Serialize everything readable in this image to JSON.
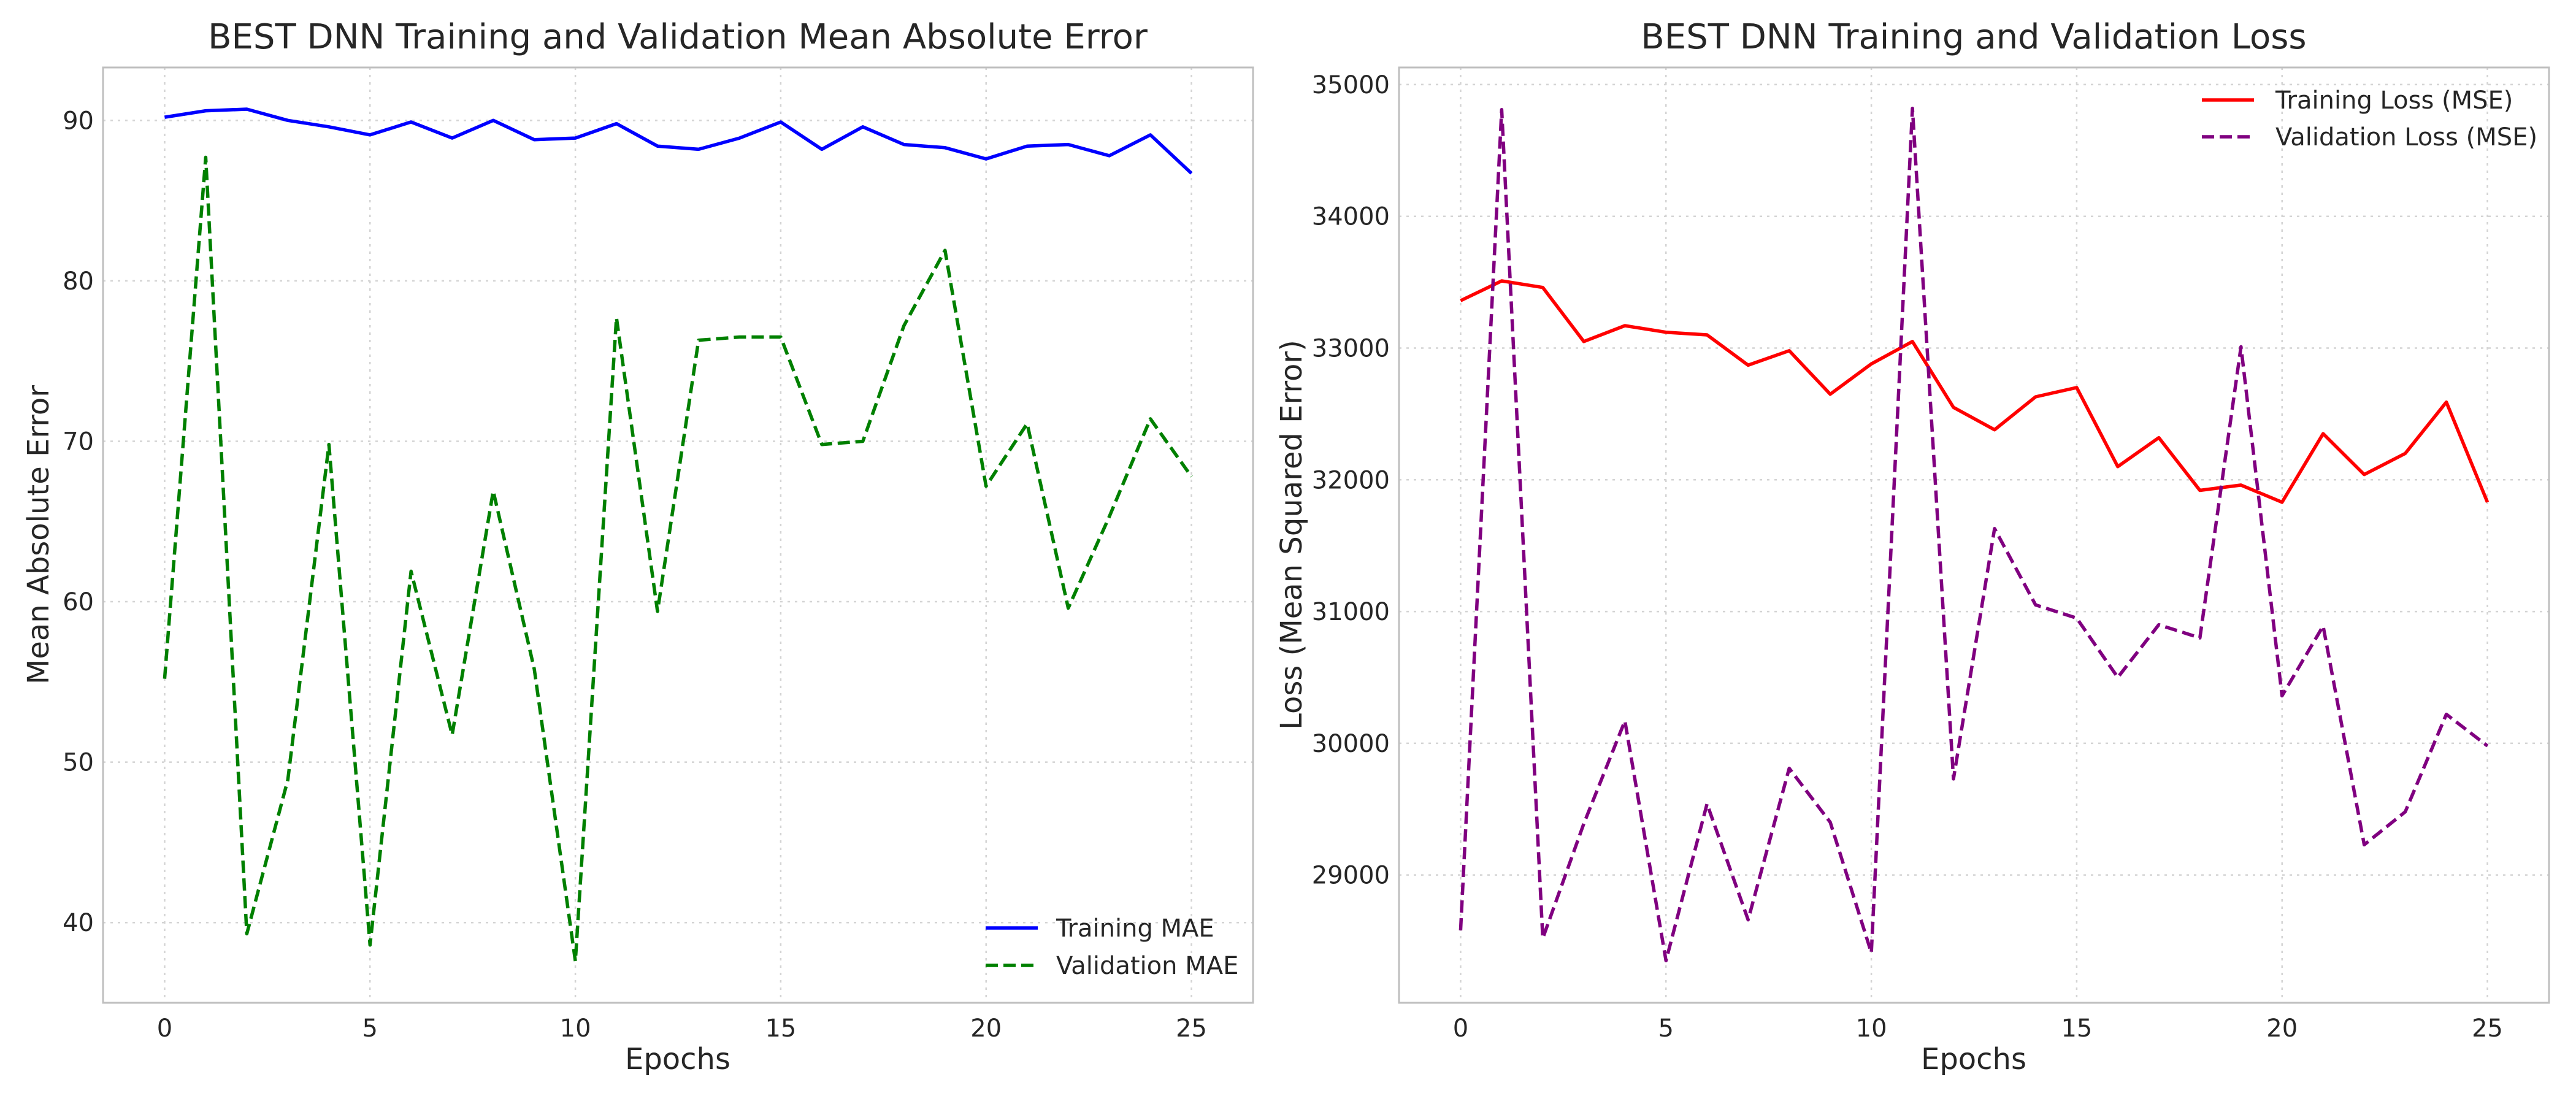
{
  "chart_data": [
    {
      "type": "line",
      "title": "BEST DNN Training and Validation Mean Absolute Error",
      "xlabel": "Epochs",
      "ylabel": "Mean Absolute Error",
      "xlim": [
        -1.5,
        26.5
      ],
      "ylim": [
        35,
        93.3
      ],
      "xticks": [
        0,
        5,
        10,
        15,
        20,
        25
      ],
      "yticks": [
        40,
        50,
        60,
        70,
        80,
        90
      ],
      "grid": true,
      "legend_position": "lower right",
      "x": [
        0,
        1,
        2,
        3,
        4,
        5,
        6,
        7,
        8,
        9,
        10,
        11,
        12,
        13,
        14,
        15,
        16,
        17,
        18,
        19,
        20,
        21,
        22,
        23,
        24,
        25
      ],
      "series": [
        {
          "name": "Training MAE",
          "color": "#0000ff",
          "style": "solid",
          "values": [
            90.2,
            90.6,
            90.7,
            90.0,
            89.6,
            89.1,
            89.9,
            88.9,
            90.0,
            88.8,
            88.9,
            89.8,
            88.4,
            88.2,
            88.9,
            89.9,
            88.2,
            89.6,
            88.5,
            88.3,
            87.6,
            88.4,
            88.5,
            87.8,
            89.1,
            86.7
          ]
        },
        {
          "name": "Validation MAE",
          "color": "#008000",
          "style": "dashed",
          "values": [
            55.2,
            87.7,
            39.3,
            48.9,
            69.8,
            38.6,
            61.9,
            51.7,
            66.9,
            55.8,
            37.6,
            77.7,
            59.4,
            76.3,
            76.5,
            76.5,
            69.8,
            70.0,
            77.2,
            81.9,
            67.2,
            71.1,
            59.6,
            65.3,
            71.4,
            67.8
          ]
        }
      ]
    },
    {
      "type": "line",
      "title": "BEST DNN Training and Validation Loss",
      "xlabel": "Epochs",
      "ylabel": "Loss (Mean Squared Error)",
      "xlim": [
        -1.5,
        26.5
      ],
      "ylim": [
        28030,
        35130
      ],
      "xticks": [
        0,
        5,
        10,
        15,
        20,
        25
      ],
      "yticks": [
        29000,
        30000,
        31000,
        32000,
        33000,
        34000,
        35000
      ],
      "grid": true,
      "legend_position": "upper right",
      "x": [
        0,
        1,
        2,
        3,
        4,
        5,
        6,
        7,
        8,
        9,
        10,
        11,
        12,
        13,
        14,
        15,
        16,
        17,
        18,
        19,
        20,
        21,
        22,
        23,
        24,
        25
      ],
      "series": [
        {
          "name": "Training Loss (MSE)",
          "color": "#ff0000",
          "style": "solid",
          "values": [
            33360,
            33510,
            33460,
            33050,
            33170,
            33120,
            33100,
            32870,
            32980,
            32650,
            32880,
            33050,
            32550,
            32380,
            32630,
            32700,
            32100,
            32320,
            31920,
            31960,
            31830,
            32350,
            32040,
            32200,
            32590,
            31830
          ]
        },
        {
          "name": "Validation Loss (MSE)",
          "color": "#800080",
          "style": "dashed",
          "values": [
            28580,
            34810,
            28520,
            29390,
            30170,
            28350,
            29540,
            28660,
            29810,
            29400,
            28410,
            34820,
            29730,
            31630,
            31050,
            30950,
            30500,
            30900,
            30800,
            33010,
            30360,
            30890,
            29230,
            29480,
            30220,
            29980
          ]
        }
      ]
    }
  ]
}
